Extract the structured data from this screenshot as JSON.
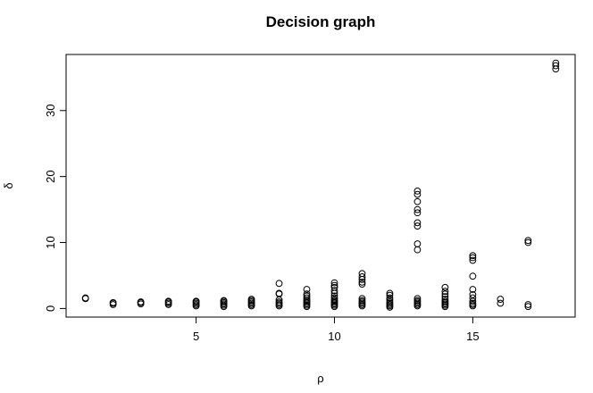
{
  "chart_data": {
    "type": "scatter",
    "title": "Decision graph",
    "xlabel": "ρ",
    "ylabel": "δ",
    "xlim": [
      0.3,
      18.7
    ],
    "ylim": [
      -1.3,
      38.5
    ],
    "xticks": [
      5,
      10,
      15
    ],
    "yticks": [
      0,
      10,
      20,
      30
    ],
    "grid": false,
    "legend": "none",
    "marker": "open-circle",
    "points": [
      [
        1,
        1.6
      ],
      [
        1,
        1.5
      ],
      [
        2,
        0.6
      ],
      [
        2,
        0.8
      ],
      [
        2,
        0.9
      ],
      [
        3,
        0.7
      ],
      [
        3,
        0.9
      ],
      [
        3,
        1.0
      ],
      [
        4,
        0.6
      ],
      [
        4,
        0.8
      ],
      [
        4,
        1.0
      ],
      [
        4,
        1.1
      ],
      [
        5,
        0.4
      ],
      [
        5,
        0.6
      ],
      [
        5,
        0.8
      ],
      [
        5,
        1.0
      ],
      [
        5,
        1.1
      ],
      [
        6,
        0.3
      ],
      [
        6,
        0.5
      ],
      [
        6,
        0.7
      ],
      [
        6,
        0.9
      ],
      [
        6,
        1.1
      ],
      [
        6,
        1.2
      ],
      [
        7,
        0.4
      ],
      [
        7,
        0.6
      ],
      [
        7,
        0.8
      ],
      [
        7,
        1.0
      ],
      [
        7,
        1.2
      ],
      [
        7,
        1.4
      ],
      [
        8,
        0.4
      ],
      [
        8,
        0.6
      ],
      [
        8,
        0.8
      ],
      [
        8,
        1.0
      ],
      [
        8,
        1.3
      ],
      [
        8,
        2.2
      ],
      [
        8,
        2.3
      ],
      [
        8,
        3.8
      ],
      [
        9,
        0.3
      ],
      [
        9,
        0.5
      ],
      [
        9,
        0.7
      ],
      [
        9,
        0.9
      ],
      [
        9,
        1.1
      ],
      [
        9,
        1.3
      ],
      [
        9,
        1.6
      ],
      [
        9,
        1.9
      ],
      [
        9,
        2.2
      ],
      [
        9,
        2.9
      ],
      [
        10,
        0.3
      ],
      [
        10,
        0.5
      ],
      [
        10,
        0.7
      ],
      [
        10,
        0.9
      ],
      [
        10,
        1.1
      ],
      [
        10,
        1.3
      ],
      [
        10,
        1.6
      ],
      [
        10,
        1.9
      ],
      [
        10,
        2.3
      ],
      [
        10,
        2.7
      ],
      [
        10,
        3.2
      ],
      [
        10,
        3.5
      ],
      [
        10,
        3.9
      ],
      [
        11,
        0.4
      ],
      [
        11,
        0.6
      ],
      [
        11,
        0.8
      ],
      [
        11,
        1.0
      ],
      [
        11,
        1.2
      ],
      [
        11,
        1.5
      ],
      [
        11,
        3.7
      ],
      [
        11,
        4.0
      ],
      [
        11,
        4.4
      ],
      [
        11,
        4.8
      ],
      [
        11,
        5.3
      ],
      [
        12,
        0.2
      ],
      [
        12,
        0.4
      ],
      [
        12,
        0.6
      ],
      [
        12,
        0.8
      ],
      [
        12,
        1.0
      ],
      [
        12,
        1.3
      ],
      [
        12,
        1.6
      ],
      [
        12,
        2.0
      ],
      [
        12,
        2.3
      ],
      [
        13,
        0.4
      ],
      [
        13,
        0.6
      ],
      [
        13,
        0.8
      ],
      [
        13,
        1.0
      ],
      [
        13,
        1.2
      ],
      [
        13,
        1.5
      ],
      [
        13,
        8.9
      ],
      [
        13,
        9.8
      ],
      [
        13,
        12.5
      ],
      [
        13,
        13.0
      ],
      [
        13,
        14.5
      ],
      [
        13,
        15.0
      ],
      [
        13,
        16.2
      ],
      [
        13,
        17.3
      ],
      [
        13,
        17.8
      ],
      [
        14,
        0.3
      ],
      [
        14,
        0.5
      ],
      [
        14,
        0.7
      ],
      [
        14,
        0.9
      ],
      [
        14,
        1.1
      ],
      [
        14,
        1.4
      ],
      [
        14,
        1.8
      ],
      [
        14,
        2.2
      ],
      [
        14,
        2.6
      ],
      [
        14,
        3.2
      ],
      [
        15,
        0.4
      ],
      [
        15,
        0.6
      ],
      [
        15,
        0.8
      ],
      [
        15,
        1.1
      ],
      [
        15,
        1.6
      ],
      [
        15,
        2.1
      ],
      [
        15,
        2.9
      ],
      [
        15,
        4.9
      ],
      [
        15,
        7.3
      ],
      [
        15,
        7.7
      ],
      [
        15,
        8.0
      ],
      [
        16,
        0.8
      ],
      [
        16,
        1.4
      ],
      [
        17,
        0.3
      ],
      [
        17,
        0.6
      ],
      [
        17,
        10.0
      ],
      [
        17,
        10.3
      ],
      [
        18,
        36.3
      ],
      [
        18,
        36.8
      ],
      [
        18,
        37.2
      ]
    ]
  }
}
